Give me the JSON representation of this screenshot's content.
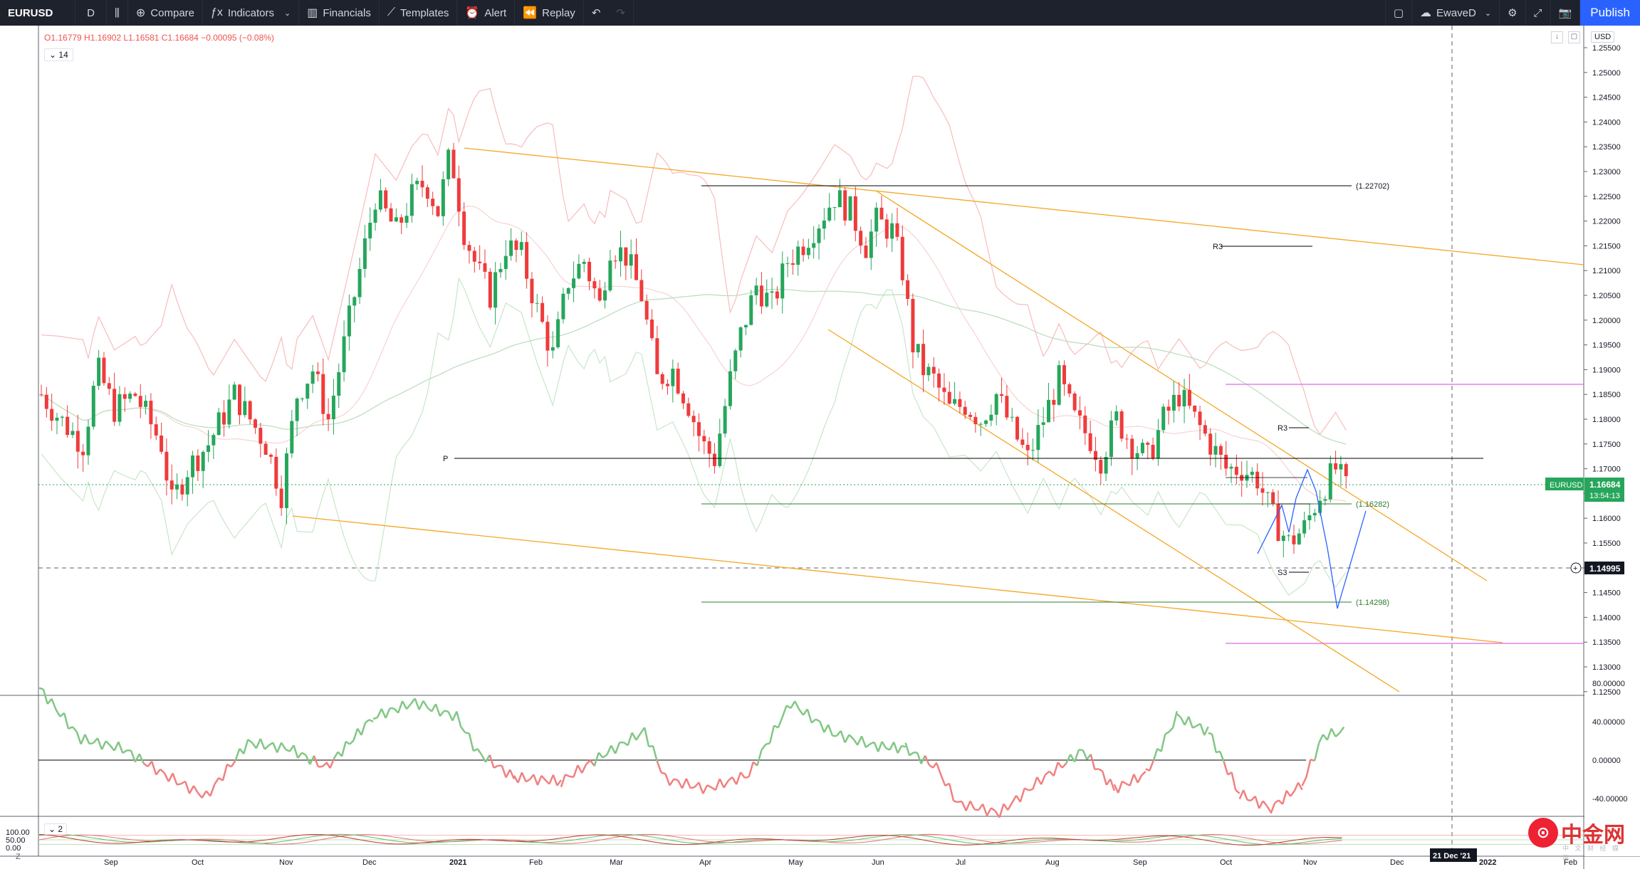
{
  "toolbar": {
    "symbol": "EURUSD",
    "interval": "D",
    "compare": "Compare",
    "indicators": "Indicators",
    "financials": "Financials",
    "templates": "Templates",
    "alert": "Alert",
    "replay": "Replay",
    "layout_name": "EwaveD",
    "publish": "Publish"
  },
  "legend": {
    "ohlc": "O1.16779 H1.16902 L1.16581 C1.16684 −0.00095 (−0.08%)",
    "indicator_toggle": "14",
    "pane2_toggle": "2"
  },
  "price_scale": {
    "currency": "USD",
    "ticks": [
      "1.25500",
      "1.25000",
      "1.24500",
      "1.24000",
      "1.23500",
      "1.23000",
      "1.22500",
      "1.22000",
      "1.21500",
      "1.21000",
      "1.20500",
      "1.20000",
      "1.19500",
      "1.19000",
      "1.18500",
      "1.18000",
      "1.17500",
      "1.17000",
      "1.16500",
      "1.16000",
      "1.15500",
      "1.15000",
      "1.14500",
      "1.14000",
      "1.13500",
      "1.13000",
      "1.12500"
    ],
    "last_price_symbol": "EURUSD",
    "last_price": "1.16684",
    "countdown": "13:54:13",
    "crosshair_price": "1.14995"
  },
  "osc_scale": {
    "ticks": [
      "80.00000",
      "40.00000",
      "0.00000",
      "-40.00000"
    ]
  },
  "pane2_scale": {
    "ticks": [
      "100.00",
      "50.00",
      "0.00"
    ]
  },
  "time_axis": {
    "labels": [
      "Sep",
      "Oct",
      "Nov",
      "Dec",
      "2021",
      "Feb",
      "Mar",
      "Apr",
      "May",
      "Jun",
      "Jul",
      "Aug",
      "Sep",
      "Oct",
      "Nov",
      "Dec",
      "2022",
      "Feb"
    ],
    "crosshair_date": "21 Dec '21"
  },
  "annotations": {
    "level_high": "(1.22702)",
    "level_mid": "(1.16282)",
    "level_low": "(1.14298)",
    "r3_label": "R3",
    "p_label": "P",
    "s3_label": "S3"
  },
  "bottom": {
    "zoom_label": "Z"
  },
  "watermark": {
    "brand": "中金网",
    "sub": "中 文 财 经 媒 体"
  },
  "colors": {
    "up": "#26a65b",
    "down": "#ef3b3b",
    "orange": "#f5a623",
    "pink": "#e06be0",
    "osc_up": "#81c784",
    "osc_down": "#f08080",
    "blue": "#2962ff"
  },
  "chart_data": {
    "type": "candlestick",
    "symbol": "EURUSD",
    "interval": "D",
    "ylim": [
      1.125,
      1.2575
    ],
    "key_levels": [
      1.22702,
      1.16282,
      1.14298
    ],
    "last_close": 1.16684,
    "close_path": [
      [
        0,
        1.185
      ],
      [
        18,
        1.18
      ],
      [
        40,
        1.175
      ],
      [
        54,
        1.19
      ],
      [
        70,
        1.182
      ],
      [
        90,
        1.185
      ],
      [
        115,
        1.175
      ],
      [
        125,
        1.163
      ],
      [
        140,
        1.17
      ],
      [
        160,
        1.175
      ],
      [
        185,
        1.185
      ],
      [
        200,
        1.18
      ],
      [
        215,
        1.175
      ],
      [
        230,
        1.165
      ],
      [
        245,
        1.185
      ],
      [
        260,
        1.19
      ],
      [
        275,
        1.18
      ],
      [
        290,
        1.195
      ],
      [
        305,
        1.21
      ],
      [
        320,
        1.225
      ],
      [
        340,
        1.218
      ],
      [
        355,
        1.225
      ],
      [
        368,
        1.228
      ],
      [
        380,
        1.222
      ],
      [
        392,
        1.234
      ],
      [
        405,
        1.218
      ],
      [
        418,
        1.21
      ],
      [
        430,
        1.205
      ],
      [
        445,
        1.215
      ],
      [
        460,
        1.213
      ],
      [
        475,
        1.202
      ],
      [
        490,
        1.193
      ],
      [
        505,
        1.208
      ],
      [
        520,
        1.212
      ],
      [
        535,
        1.203
      ],
      [
        545,
        1.215
      ],
      [
        560,
        1.213
      ],
      [
        575,
        1.205
      ],
      [
        590,
        1.188
      ],
      [
        605,
        1.19
      ],
      [
        620,
        1.183
      ],
      [
        633,
        1.175
      ],
      [
        645,
        1.172
      ],
      [
        660,
        1.188
      ],
      [
        670,
        1.197
      ],
      [
        685,
        1.207
      ],
      [
        700,
        1.203
      ],
      [
        715,
        1.212
      ],
      [
        728,
        1.215
      ],
      [
        745,
        1.22
      ],
      [
        760,
        1.225
      ],
      [
        775,
        1.222
      ],
      [
        790,
        1.215
      ],
      [
        800,
        1.22
      ],
      [
        815,
        1.218
      ],
      [
        825,
        1.21
      ],
      [
        835,
        1.195
      ],
      [
        845,
        1.19
      ],
      [
        855,
        1.188
      ],
      [
        870,
        1.182
      ],
      [
        885,
        1.183
      ],
      [
        900,
        1.18
      ],
      [
        915,
        1.185
      ],
      [
        930,
        1.178
      ],
      [
        945,
        1.172
      ],
      [
        960,
        1.18
      ],
      [
        975,
        1.188
      ],
      [
        990,
        1.18
      ],
      [
        1005,
        1.176
      ],
      [
        1015,
        1.172
      ],
      [
        1030,
        1.18
      ],
      [
        1045,
        1.175
      ],
      [
        1060,
        1.172
      ],
      [
        1075,
        1.18
      ],
      [
        1090,
        1.185
      ],
      [
        1105,
        1.18
      ],
      [
        1120,
        1.175
      ],
      [
        1135,
        1.17
      ],
      [
        1150,
        1.17
      ],
      [
        1165,
        1.168
      ],
      [
        1180,
        1.16
      ],
      [
        1195,
        1.155
      ],
      [
        1210,
        1.158
      ],
      [
        1225,
        1.165
      ],
      [
        1240,
        1.17
      ],
      [
        1250,
        1.166
      ]
    ],
    "oscillator": [
      [
        0,
        75
      ],
      [
        40,
        22
      ],
      [
        80,
        12
      ],
      [
        120,
        -15
      ],
      [
        160,
        -38
      ],
      [
        200,
        18
      ],
      [
        240,
        12
      ],
      [
        275,
        -8
      ],
      [
        320,
        45
      ],
      [
        360,
        60
      ],
      [
        400,
        45
      ],
      [
        420,
        8
      ],
      [
        455,
        -18
      ],
      [
        500,
        -22
      ],
      [
        540,
        5
      ],
      [
        580,
        30
      ],
      [
        600,
        -20
      ],
      [
        640,
        -30
      ],
      [
        680,
        -15
      ],
      [
        720,
        60
      ],
      [
        760,
        28
      ],
      [
        800,
        15
      ],
      [
        830,
        12
      ],
      [
        860,
        -8
      ],
      [
        880,
        -45
      ],
      [
        920,
        -55
      ],
      [
        960,
        -20
      ],
      [
        1000,
        10
      ],
      [
        1030,
        -30
      ],
      [
        1060,
        -15
      ],
      [
        1090,
        45
      ],
      [
        1120,
        30
      ],
      [
        1150,
        -35
      ],
      [
        1180,
        -50
      ],
      [
        1210,
        -25
      ],
      [
        1230,
        25
      ],
      [
        1250,
        30
      ]
    ]
  }
}
